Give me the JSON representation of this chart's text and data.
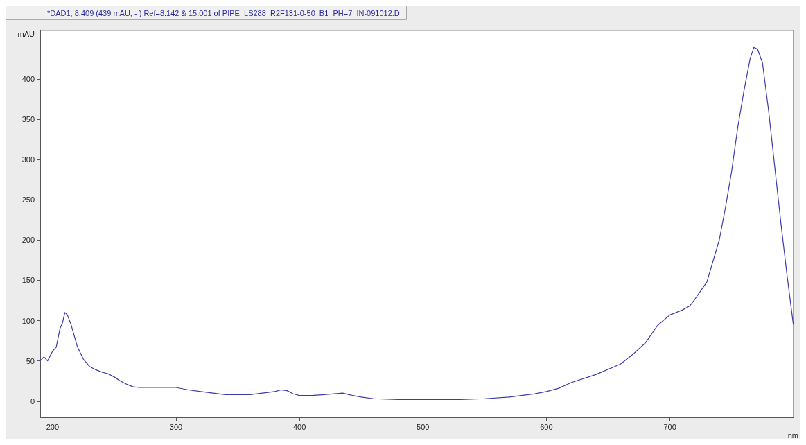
{
  "chart_data": {
    "type": "line",
    "title": "*DAD1, 8.409 (439 mAU, - ) Ref=8.142 & 15.001 of PIPE_LS288_R2F131-0-50_B1_PH=7_IN-091012.D",
    "xlabel": "nm",
    "ylabel": "mAU",
    "xlim": [
      190,
      800
    ],
    "xticks": [
      200,
      300,
      400,
      500,
      600,
      700
    ],
    "ylim": [
      -20,
      460
    ],
    "yticks": [
      0,
      50,
      100,
      150,
      200,
      250,
      300,
      350,
      400
    ],
    "grid": false,
    "marker": "none",
    "line_style": "solid",
    "series": [
      {
        "color": "#3a3aa8",
        "x": [
          190,
          193,
          196,
          200,
          203,
          206,
          208,
          210,
          212,
          215,
          220,
          225,
          230,
          235,
          240,
          245,
          250,
          255,
          260,
          265,
          270,
          290,
          300,
          310,
          320,
          330,
          340,
          360,
          370,
          380,
          385,
          390,
          395,
          400,
          410,
          420,
          435,
          440,
          450,
          460,
          480,
          500,
          530,
          550,
          570,
          590,
          600,
          610,
          620,
          640,
          660,
          670,
          680,
          690,
          700,
          710,
          716,
          720,
          730,
          740,
          745,
          750,
          755,
          760,
          765,
          768,
          771,
          775,
          780,
          785,
          790,
          795,
          800
        ],
        "values": [
          50,
          55,
          50,
          62,
          67,
          90,
          97,
          110,
          107,
          95,
          68,
          52,
          43,
          39,
          36,
          34,
          30,
          25,
          21,
          18,
          17,
          17,
          17,
          14,
          12,
          10,
          8,
          8,
          10,
          12,
          14,
          13,
          9,
          7,
          7,
          8,
          10,
          8,
          5,
          3,
          2,
          2,
          2,
          3,
          5,
          9,
          12,
          16,
          23,
          33,
          46,
          58,
          72,
          94,
          107,
          113,
          118,
          126,
          148,
          200,
          240,
          285,
          340,
          385,
          425,
          439,
          437,
          420,
          360,
          290,
          220,
          155,
          95
        ]
      }
    ]
  }
}
